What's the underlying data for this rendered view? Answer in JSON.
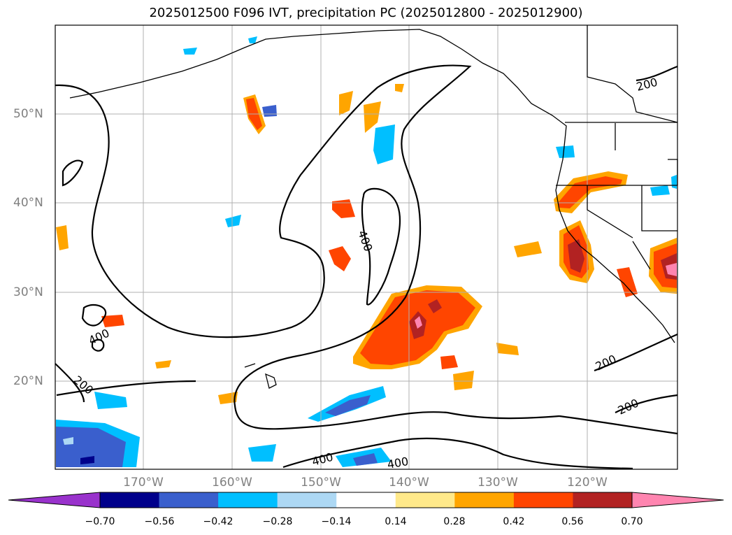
{
  "title": "2025012500 F096 IVT, precipitation PC (2025012800 - 2025012900)",
  "lat_labels": [
    "50°N",
    "40°N",
    "30°N",
    "20°N"
  ],
  "lon_labels": [
    "170°W",
    "160°W",
    "150°W",
    "140°W",
    "130°W",
    "120°W"
  ],
  "contour_labels": [
    "200",
    "400",
    "400",
    "200",
    "200",
    "400",
    "400",
    "200"
  ],
  "colorbar": {
    "ticks": [
      "−0.70",
      "−0.56",
      "−0.42",
      "−0.28",
      "−0.14",
      "0.14",
      "0.28",
      "0.42",
      "0.56",
      "0.70"
    ],
    "colors": [
      "#9932cc",
      "#00008b",
      "#3a5fcd",
      "#00bfff",
      "#add8f4",
      "#ffffff",
      "#ffe98a",
      "#ffa500",
      "#ff4500",
      "#b22222",
      "#ff85b0"
    ]
  }
}
